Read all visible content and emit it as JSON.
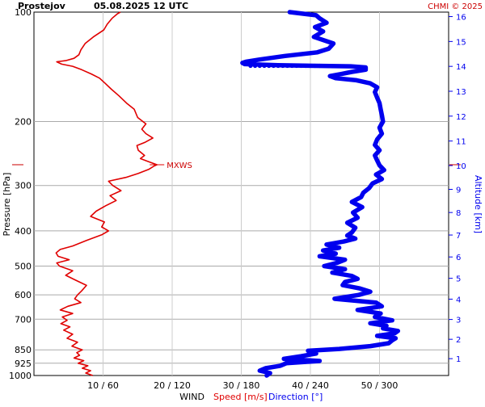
{
  "header": {
    "station": "Prostejov",
    "datetime": "05.08.2025 12 UTC",
    "credit": "CHMI © 2025"
  },
  "chart_data": {
    "type": "line",
    "ylabel": "Pressure [hPa]",
    "y2label": "Altitude [km]",
    "footer": {
      "wind": "WIND",
      "speed": "Speed [m/s]",
      "direction": "Direction [°]"
    },
    "pressure_ticks": [
      100,
      200,
      300,
      400,
      500,
      600,
      700,
      850,
      925,
      1000
    ],
    "altitude_ticks": [
      1,
      2,
      3,
      4,
      5,
      6,
      7,
      8,
      9,
      10,
      11,
      12,
      13,
      14,
      15,
      16
    ],
    "x_ticks": [
      "10 / 60",
      "20 / 120",
      "30 / 180",
      "40 / 240",
      "50 / 300"
    ],
    "speed_range": [
      0,
      60
    ],
    "direction_range": [
      0,
      360
    ],
    "max_wind_label": "MXWS",
    "max_wind_pressure": 263,
    "colors": {
      "speed": "#e00000",
      "direction": "#0000ee",
      "grid": "#aaaaaa",
      "accent": "#cc0000"
    },
    "series": [
      {
        "name": "Speed [m/s]",
        "points": [
          [
            1000,
            8.5
          ],
          [
            985,
            7.5
          ],
          [
            970,
            8.2
          ],
          [
            955,
            7.0
          ],
          [
            940,
            7.8
          ],
          [
            925,
            6.4
          ],
          [
            910,
            7.2
          ],
          [
            895,
            5.8
          ],
          [
            880,
            6.6
          ],
          [
            865,
            6.2
          ],
          [
            850,
            7.0
          ],
          [
            830,
            5.5
          ],
          [
            810,
            6.3
          ],
          [
            790,
            4.8
          ],
          [
            770,
            5.6
          ],
          [
            750,
            4.3
          ],
          [
            735,
            5.2
          ],
          [
            720,
            3.9
          ],
          [
            705,
            4.8
          ],
          [
            690,
            4.1
          ],
          [
            675,
            5.6
          ],
          [
            660,
            3.8
          ],
          [
            645,
            4.9
          ],
          [
            630,
            6.8
          ],
          [
            615,
            5.9
          ],
          [
            600,
            6.3
          ],
          [
            585,
            6.9
          ],
          [
            565,
            7.6
          ],
          [
            545,
            5.9
          ],
          [
            530,
            4.6
          ],
          [
            515,
            5.6
          ],
          [
            500,
            3.7
          ],
          [
            490,
            3.3
          ],
          [
            480,
            5.1
          ],
          [
            470,
            3.5
          ],
          [
            460,
            3.2
          ],
          [
            450,
            3.8
          ],
          [
            440,
            5.6
          ],
          [
            425,
            7.6
          ],
          [
            410,
            9.8
          ],
          [
            400,
            10.8
          ],
          [
            390,
            9.8
          ],
          [
            378,
            10.2
          ],
          [
            365,
            8.2
          ],
          [
            353,
            9.0
          ],
          [
            341,
            10.4
          ],
          [
            330,
            11.9
          ],
          [
            320,
            11.0
          ],
          [
            310,
            12.6
          ],
          [
            300,
            11.4
          ],
          [
            292,
            10.8
          ],
          [
            285,
            13.3
          ],
          [
            278,
            15.1
          ],
          [
            271,
            16.6
          ],
          [
            265,
            17.4
          ],
          [
            263,
            17.8
          ],
          [
            258,
            16.6
          ],
          [
            253,
            15.4
          ],
          [
            248,
            16.0
          ],
          [
            240,
            15.1
          ],
          [
            233,
            14.9
          ],
          [
            228,
            16.1
          ],
          [
            222,
            17.2
          ],
          [
            216,
            16.2
          ],
          [
            210,
            15.6
          ],
          [
            203,
            16.2
          ],
          [
            195,
            15.0
          ],
          [
            185,
            14.5
          ],
          [
            178,
            13.4
          ],
          [
            170,
            12.3
          ],
          [
            163,
            11.2
          ],
          [
            157,
            10.3
          ],
          [
            152,
            9.5
          ],
          [
            148,
            8.3
          ],
          [
            144,
            6.9
          ],
          [
            141,
            5.6
          ],
          [
            139,
            4.0
          ],
          [
            137,
            3.3
          ],
          [
            136,
            4.6
          ],
          [
            134,
            5.8
          ],
          [
            131,
            6.5
          ],
          [
            127,
            6.8
          ],
          [
            122,
            7.4
          ],
          [
            117,
            8.6
          ],
          [
            112,
            10.1
          ],
          [
            108,
            10.6
          ],
          [
            104,
            11.3
          ],
          [
            101,
            12.1
          ],
          [
            100,
            12.5
          ]
        ]
      },
      {
        "name": "Direction [°]",
        "points": [
          [
            1000,
            202
          ],
          [
            985,
            205
          ],
          [
            970,
            196
          ],
          [
            955,
            201
          ],
          [
            940,
            214
          ],
          [
            925,
            219
          ],
          [
            912,
            248
          ],
          [
            900,
            217
          ],
          [
            885,
            232
          ],
          [
            870,
            245
          ],
          [
            855,
            238
          ],
          [
            845,
            265
          ],
          [
            830,
            292
          ],
          [
            815,
            308
          ],
          [
            800,
            311
          ],
          [
            790,
            314
          ],
          [
            778,
            298
          ],
          [
            766,
            313
          ],
          [
            754,
            316
          ],
          [
            742,
            303
          ],
          [
            730,
            306
          ],
          [
            718,
            292
          ],
          [
            705,
            311
          ],
          [
            690,
            296
          ],
          [
            675,
            301
          ],
          [
            660,
            281
          ],
          [
            645,
            302
          ],
          [
            630,
            297
          ],
          [
            615,
            261
          ],
          [
            600,
            282
          ],
          [
            588,
            292
          ],
          [
            576,
            283
          ],
          [
            564,
            268
          ],
          [
            553,
            270
          ],
          [
            542,
            281
          ],
          [
            532,
            276
          ],
          [
            521,
            259
          ],
          [
            510,
            270
          ],
          [
            500,
            252
          ],
          [
            490,
            263
          ],
          [
            480,
            270
          ],
          [
            470,
            248
          ],
          [
            462,
            262
          ],
          [
            453,
            251
          ],
          [
            445,
            265
          ],
          [
            436,
            254
          ],
          [
            428,
            269
          ],
          [
            420,
            279
          ],
          [
            412,
            272
          ],
          [
            404,
            276
          ],
          [
            392,
            279
          ],
          [
            380,
            272
          ],
          [
            368,
            281
          ],
          [
            356,
            277
          ],
          [
            344,
            285
          ],
          [
            333,
            276
          ],
          [
            323,
            284
          ],
          [
            314,
            286
          ],
          [
            305,
            291
          ],
          [
            296,
            294
          ],
          [
            288,
            302
          ],
          [
            280,
            297
          ],
          [
            272,
            304
          ],
          [
            264,
            300
          ],
          [
            256,
            298
          ],
          [
            248,
            296
          ],
          [
            240,
            300
          ],
          [
            232,
            296
          ],
          [
            224,
            298
          ],
          [
            216,
            302
          ],
          [
            208,
            300
          ],
          [
            200,
            303
          ],
          [
            192,
            302
          ],
          [
            185,
            301
          ],
          [
            178,
            300
          ],
          [
            172,
            298
          ],
          [
            166,
            296
          ],
          [
            161,
            298
          ],
          [
            157,
            292
          ],
          [
            154,
            280
          ],
          [
            152,
            262
          ],
          [
            150,
            257
          ],
          [
            148,
            267
          ],
          [
            146,
            276
          ],
          [
            144,
            288
          ],
          [
            142,
            288
          ],
          [
            141,
            275
          ],
          [
            140,
            212
          ],
          [
            139,
            183
          ],
          [
            138,
            181
          ],
          [
            137,
            184
          ],
          [
            135,
            196
          ],
          [
            132,
            218
          ],
          [
            129,
            246
          ],
          [
            126,
            256
          ],
          [
            122,
            260
          ],
          [
            117,
            243
          ],
          [
            113,
            251
          ],
          [
            110,
            244
          ],
          [
            107,
            254
          ],
          [
            104,
            248
          ],
          [
            102,
            245
          ],
          [
            100,
            222
          ]
        ]
      }
    ]
  }
}
